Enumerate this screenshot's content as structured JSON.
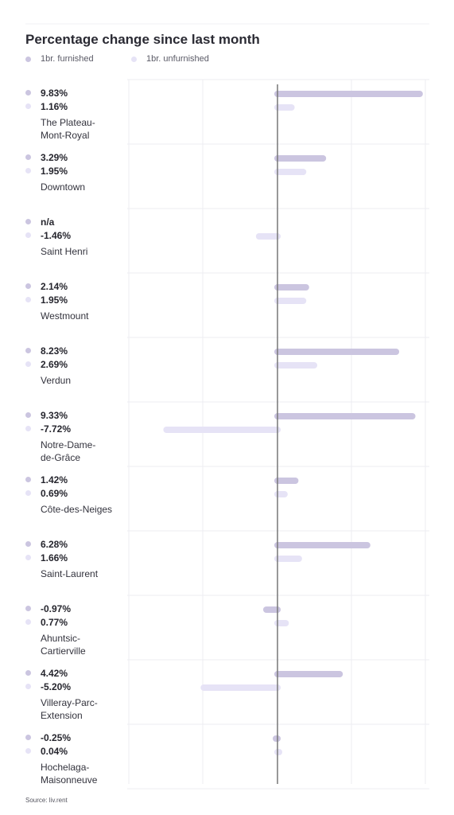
{
  "title": "Percentage change since last month",
  "source": "Source: liv.rent",
  "legend": {
    "series_a": "1br. furnished",
    "series_b": "1br. unfurnished"
  },
  "colors": {
    "furnished": "#cbc5e0",
    "unfurnished": "#e6e3f6",
    "axis": "#777777",
    "grid": "#ececf2"
  },
  "chart_data": {
    "type": "bar",
    "orientation": "horizontal",
    "title": "Percentage change since last month",
    "grid": true,
    "legend_position": "top-left",
    "categories": [
      "The Plateau-Mont-Royal",
      "Downtown",
      "Saint Henri",
      "Westmount",
      "Verdun",
      "Notre-Dame-de-Grâce",
      "Côte-des-Neiges",
      "Saint-Laurent",
      "Ahuntsic-Cartierville",
      "Villeray-Parc-Extension",
      "Hochelaga-Maisonneuve"
    ],
    "series": [
      {
        "name": "1br. furnished",
        "values": [
          9.83,
          3.29,
          null,
          2.14,
          8.23,
          9.33,
          1.42,
          6.28,
          -0.97,
          4.42,
          -0.25
        ]
      },
      {
        "name": "1br. unfurnished",
        "values": [
          1.16,
          1.95,
          -1.46,
          1.95,
          2.69,
          -7.72,
          0.69,
          1.66,
          0.77,
          -5.2,
          0.04
        ]
      }
    ]
  },
  "rows": [
    {
      "a": "9.83%",
      "b": "1.16%",
      "name_lines": [
        "The Plateau-",
        "Mont-Royal"
      ]
    },
    {
      "a": "3.29%",
      "b": "1.95%",
      "name_lines": [
        "Downtown"
      ]
    },
    {
      "a": "n/a",
      "b": "-1.46%",
      "name_lines": [
        "Saint Henri"
      ]
    },
    {
      "a": "2.14%",
      "b": "1.95%",
      "name_lines": [
        "Westmount"
      ]
    },
    {
      "a": "8.23%",
      "b": "2.69%",
      "name_lines": [
        "Verdun"
      ]
    },
    {
      "a": "9.33%",
      "b": "-7.72%",
      "name_lines": [
        "Notre-Dame-",
        "de-Grâce"
      ]
    },
    {
      "a": "1.42%",
      "b": "0.69%",
      "name_lines": [
        "Côte-des-Neiges"
      ]
    },
    {
      "a": "6.28%",
      "b": "1.66%",
      "name_lines": [
        "Saint-Laurent"
      ]
    },
    {
      "a": "-0.97%",
      "b": "0.77%",
      "name_lines": [
        "Ahuntsic-",
        "Cartierville"
      ]
    },
    {
      "a": "4.42%",
      "b": "-5.20%",
      "name_lines": [
        "Villeray-Parc-",
        "Extension"
      ]
    },
    {
      "a": "-0.25%",
      "b": "0.04%",
      "name_lines": [
        "Hochelaga-",
        "Maisonneuve"
      ]
    }
  ]
}
